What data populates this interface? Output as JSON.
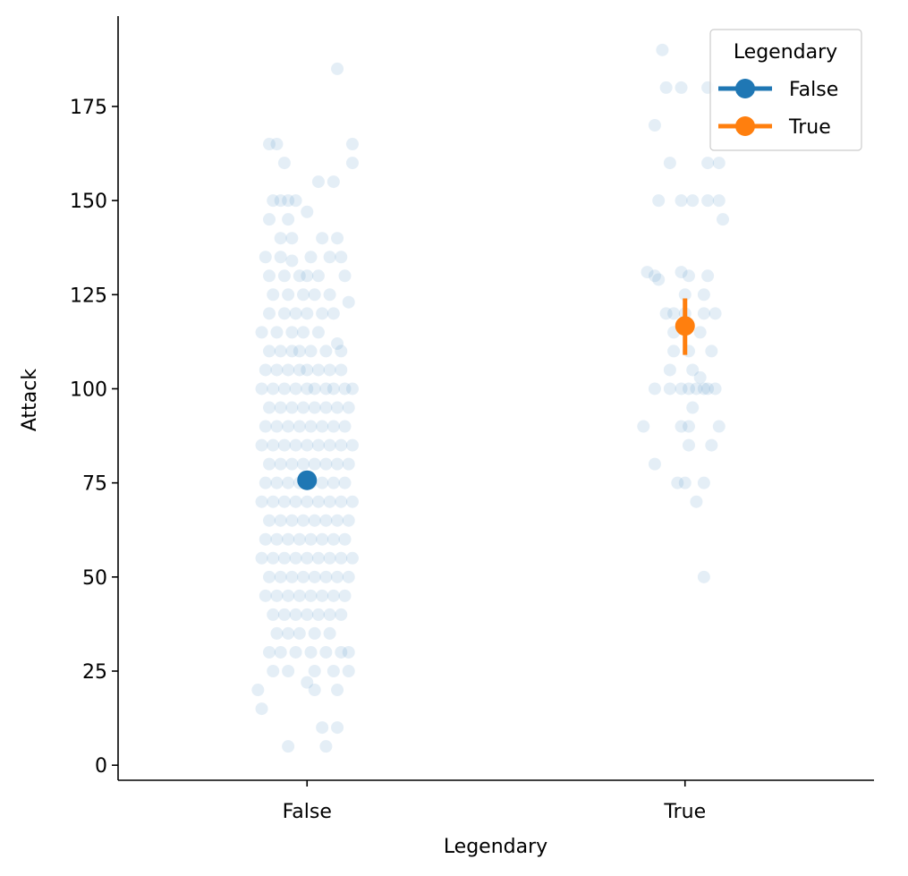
{
  "chart_data": {
    "type": "scatter",
    "subtype": "strip plot with point estimate and error bar",
    "xlabel": "Legendary",
    "ylabel": "Attack",
    "categories": [
      "False",
      "True"
    ],
    "ylim": [
      -4,
      199
    ],
    "yticks": [
      0,
      25,
      50,
      75,
      100,
      125,
      150,
      175
    ],
    "grid": false,
    "legend": {
      "title": "Legendary",
      "position": "top-right",
      "entries": [
        {
          "label": "False",
          "color": "#1f77b4"
        },
        {
          "label": "True",
          "color": "#ff7f0e"
        }
      ]
    },
    "strip": {
      "color": "#1f77b4",
      "alpha": 0.12,
      "points": {
        "False": [
          [
            0.08,
            185
          ],
          [
            -0.1,
            165
          ],
          [
            -0.08,
            165
          ],
          [
            0.12,
            165
          ],
          [
            0.12,
            160
          ],
          [
            -0.06,
            160
          ],
          [
            0.03,
            155
          ],
          [
            0.07,
            155
          ],
          [
            -0.09,
            150
          ],
          [
            -0.07,
            150
          ],
          [
            -0.05,
            150
          ],
          [
            -0.03,
            150
          ],
          [
            0.0,
            147
          ],
          [
            -0.1,
            145
          ],
          [
            -0.05,
            145
          ],
          [
            -0.07,
            140
          ],
          [
            -0.04,
            140
          ],
          [
            0.04,
            140
          ],
          [
            0.08,
            140
          ],
          [
            -0.11,
            135
          ],
          [
            -0.07,
            135
          ],
          [
            -0.04,
            134
          ],
          [
            0.01,
            135
          ],
          [
            0.06,
            135
          ],
          [
            0.09,
            135
          ],
          [
            -0.1,
            130
          ],
          [
            -0.06,
            130
          ],
          [
            -0.02,
            130
          ],
          [
            0.0,
            130
          ],
          [
            0.03,
            130
          ],
          [
            0.1,
            130
          ],
          [
            -0.09,
            125
          ],
          [
            -0.05,
            125
          ],
          [
            -0.01,
            125
          ],
          [
            0.02,
            125
          ],
          [
            0.06,
            125
          ],
          [
            0.11,
            123
          ],
          [
            -0.1,
            120
          ],
          [
            -0.06,
            120
          ],
          [
            -0.03,
            120
          ],
          [
            0.0,
            120
          ],
          [
            0.04,
            120
          ],
          [
            0.07,
            120
          ],
          [
            -0.12,
            115
          ],
          [
            -0.08,
            115
          ],
          [
            -0.04,
            115
          ],
          [
            -0.01,
            115
          ],
          [
            0.03,
            115
          ],
          [
            0.08,
            112
          ],
          [
            -0.1,
            110
          ],
          [
            -0.07,
            110
          ],
          [
            -0.04,
            110
          ],
          [
            -0.02,
            110
          ],
          [
            0.01,
            110
          ],
          [
            0.05,
            110
          ],
          [
            0.09,
            110
          ],
          [
            -0.11,
            105
          ],
          [
            -0.08,
            105
          ],
          [
            -0.05,
            105
          ],
          [
            -0.02,
            105
          ],
          [
            0.0,
            105
          ],
          [
            0.03,
            105
          ],
          [
            0.06,
            105
          ],
          [
            0.09,
            105
          ],
          [
            -0.12,
            100
          ],
          [
            -0.09,
            100
          ],
          [
            -0.06,
            100
          ],
          [
            -0.03,
            100
          ],
          [
            0.0,
            100
          ],
          [
            0.02,
            100
          ],
          [
            0.05,
            100
          ],
          [
            0.07,
            100
          ],
          [
            0.1,
            100
          ],
          [
            0.12,
            100
          ],
          [
            -0.1,
            95
          ],
          [
            -0.07,
            95
          ],
          [
            -0.04,
            95
          ],
          [
            -0.01,
            95
          ],
          [
            0.02,
            95
          ],
          [
            0.05,
            95
          ],
          [
            0.08,
            95
          ],
          [
            0.11,
            95
          ],
          [
            -0.11,
            90
          ],
          [
            -0.08,
            90
          ],
          [
            -0.05,
            90
          ],
          [
            -0.02,
            90
          ],
          [
            0.01,
            90
          ],
          [
            0.04,
            90
          ],
          [
            0.07,
            90
          ],
          [
            0.1,
            90
          ],
          [
            -0.12,
            85
          ],
          [
            -0.09,
            85
          ],
          [
            -0.06,
            85
          ],
          [
            -0.03,
            85
          ],
          [
            0.0,
            85
          ],
          [
            0.03,
            85
          ],
          [
            0.06,
            85
          ],
          [
            0.09,
            85
          ],
          [
            0.12,
            85
          ],
          [
            -0.1,
            80
          ],
          [
            -0.07,
            80
          ],
          [
            -0.04,
            80
          ],
          [
            -0.01,
            80
          ],
          [
            0.02,
            80
          ],
          [
            0.05,
            80
          ],
          [
            0.08,
            80
          ],
          [
            0.11,
            80
          ],
          [
            -0.11,
            75
          ],
          [
            -0.08,
            75
          ],
          [
            -0.05,
            75
          ],
          [
            -0.02,
            75
          ],
          [
            0.01,
            75
          ],
          [
            0.04,
            75
          ],
          [
            0.07,
            75
          ],
          [
            0.1,
            75
          ],
          [
            -0.12,
            70
          ],
          [
            -0.09,
            70
          ],
          [
            -0.06,
            70
          ],
          [
            -0.03,
            70
          ],
          [
            0.0,
            70
          ],
          [
            0.03,
            70
          ],
          [
            0.06,
            70
          ],
          [
            0.09,
            70
          ],
          [
            0.12,
            70
          ],
          [
            -0.1,
            65
          ],
          [
            -0.07,
            65
          ],
          [
            -0.04,
            65
          ],
          [
            -0.01,
            65
          ],
          [
            0.02,
            65
          ],
          [
            0.05,
            65
          ],
          [
            0.08,
            65
          ],
          [
            0.11,
            65
          ],
          [
            -0.11,
            60
          ],
          [
            -0.08,
            60
          ],
          [
            -0.05,
            60
          ],
          [
            -0.02,
            60
          ],
          [
            0.01,
            60
          ],
          [
            0.04,
            60
          ],
          [
            0.07,
            60
          ],
          [
            0.1,
            60
          ],
          [
            -0.12,
            55
          ],
          [
            -0.09,
            55
          ],
          [
            -0.06,
            55
          ],
          [
            -0.03,
            55
          ],
          [
            0.0,
            55
          ],
          [
            0.03,
            55
          ],
          [
            0.06,
            55
          ],
          [
            0.09,
            55
          ],
          [
            0.12,
            55
          ],
          [
            -0.1,
            50
          ],
          [
            -0.07,
            50
          ],
          [
            -0.04,
            50
          ],
          [
            -0.01,
            50
          ],
          [
            0.02,
            50
          ],
          [
            0.05,
            50
          ],
          [
            0.08,
            50
          ],
          [
            0.11,
            50
          ],
          [
            -0.11,
            45
          ],
          [
            -0.08,
            45
          ],
          [
            -0.05,
            45
          ],
          [
            -0.02,
            45
          ],
          [
            0.01,
            45
          ],
          [
            0.04,
            45
          ],
          [
            0.07,
            45
          ],
          [
            0.1,
            45
          ],
          [
            -0.09,
            40
          ],
          [
            -0.06,
            40
          ],
          [
            -0.03,
            40
          ],
          [
            0.0,
            40
          ],
          [
            0.03,
            40
          ],
          [
            0.06,
            40
          ],
          [
            0.09,
            40
          ],
          [
            -0.08,
            35
          ],
          [
            -0.05,
            35
          ],
          [
            -0.02,
            35
          ],
          [
            0.02,
            35
          ],
          [
            0.06,
            35
          ],
          [
            -0.1,
            30
          ],
          [
            -0.07,
            30
          ],
          [
            -0.03,
            30
          ],
          [
            0.01,
            30
          ],
          [
            0.05,
            30
          ],
          [
            0.09,
            30
          ],
          [
            0.11,
            30
          ],
          [
            -0.09,
            25
          ],
          [
            -0.05,
            25
          ],
          [
            0.02,
            25
          ],
          [
            0.07,
            25
          ],
          [
            0.11,
            25
          ],
          [
            0.0,
            22
          ],
          [
            0.02,
            20
          ],
          [
            0.08,
            20
          ],
          [
            -0.13,
            20
          ],
          [
            -0.12,
            15
          ],
          [
            0.04,
            10
          ],
          [
            0.08,
            10
          ],
          [
            -0.05,
            5
          ],
          [
            0.05,
            5
          ]
        ],
        "True": [
          [
            -0.06,
            190
          ],
          [
            -0.05,
            180
          ],
          [
            -0.01,
            180
          ],
          [
            0.06,
            180
          ],
          [
            -0.08,
            170
          ],
          [
            -0.04,
            160
          ],
          [
            0.06,
            160
          ],
          [
            0.09,
            160
          ],
          [
            -0.07,
            150
          ],
          [
            -0.01,
            150
          ],
          [
            0.02,
            150
          ],
          [
            0.06,
            150
          ],
          [
            0.09,
            150
          ],
          [
            0.1,
            145
          ],
          [
            -0.1,
            131
          ],
          [
            -0.08,
            130
          ],
          [
            -0.07,
            129
          ],
          [
            -0.01,
            131
          ],
          [
            0.01,
            130
          ],
          [
            0.06,
            130
          ],
          [
            0.0,
            125
          ],
          [
            0.05,
            125
          ],
          [
            -0.05,
            120
          ],
          [
            -0.03,
            120
          ],
          [
            0.0,
            120
          ],
          [
            0.05,
            120
          ],
          [
            0.08,
            120
          ],
          [
            -0.03,
            115
          ],
          [
            0.04,
            115
          ],
          [
            -0.03,
            110
          ],
          [
            0.01,
            110
          ],
          [
            0.07,
            110
          ],
          [
            -0.04,
            105
          ],
          [
            0.02,
            105
          ],
          [
            0.04,
            103
          ],
          [
            -0.08,
            100
          ],
          [
            -0.04,
            100
          ],
          [
            -0.01,
            100
          ],
          [
            0.01,
            100
          ],
          [
            0.03,
            100
          ],
          [
            0.05,
            100
          ],
          [
            0.06,
            100
          ],
          [
            0.08,
            100
          ],
          [
            0.02,
            95
          ],
          [
            -0.11,
            90
          ],
          [
            -0.01,
            90
          ],
          [
            0.01,
            90
          ],
          [
            0.09,
            90
          ],
          [
            0.01,
            85
          ],
          [
            0.07,
            85
          ],
          [
            -0.08,
            80
          ],
          [
            -0.02,
            75
          ],
          [
            0.0,
            75
          ],
          [
            0.05,
            75
          ],
          [
            0.03,
            70
          ],
          [
            0.05,
            50
          ]
        ]
      }
    },
    "series": [
      {
        "name": "False",
        "category": "False",
        "mean": 75.7,
        "ci": [
          73.8,
          77.6
        ],
        "color": "#1f77b4"
      },
      {
        "name": "True",
        "category": "True",
        "mean": 116.7,
        "ci": [
          109.0,
          124.0
        ],
        "color": "#ff7f0e"
      }
    ]
  }
}
